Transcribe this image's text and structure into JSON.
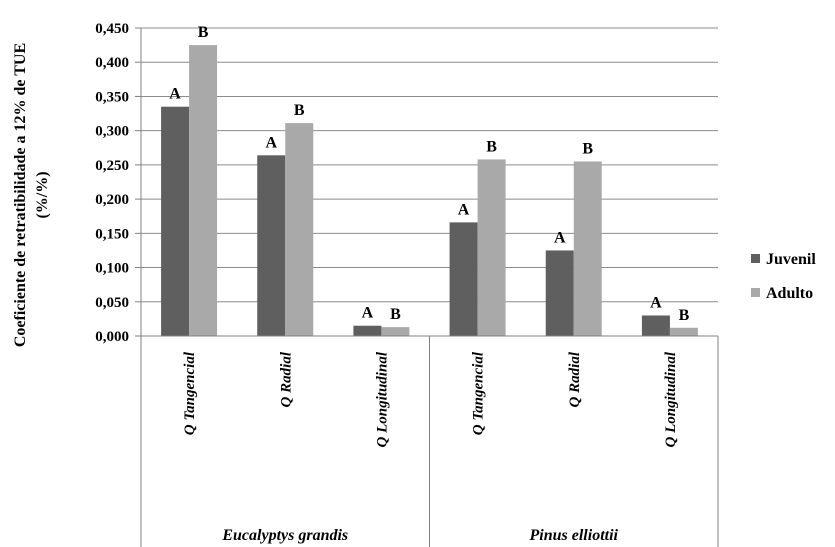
{
  "chart_data": {
    "type": "bar",
    "ylabel_line1": "Coeficiente de retratibilidade a 12% de TUE",
    "ylabel_line2": "(%/%)",
    "ylim": [
      0,
      0.45
    ],
    "yticks": [
      "0,000",
      "0,050",
      "0,100",
      "0,150",
      "0,200",
      "0,250",
      "0,300",
      "0,350",
      "0,400",
      "0,450"
    ],
    "grid": true,
    "legend_position": "right",
    "categories": [
      "Q Tangencial",
      "Q Radial",
      "Q Longitudinal",
      "Q Tangencial",
      "Q Radial",
      "Q Longitudinal"
    ],
    "groups": [
      {
        "label": "Eucalyptys grandis",
        "span": 3
      },
      {
        "label": "Pinus elliottii",
        "span": 3
      }
    ],
    "series": [
      {
        "name": "Juvenil",
        "color": "#5f5f5f",
        "values": [
          0.335,
          0.264,
          0.015,
          0.166,
          0.125,
          0.03
        ],
        "labels": [
          "A",
          "A",
          "A",
          "A",
          "A",
          "A"
        ]
      },
      {
        "name": "Adulto",
        "color": "#a9a9a9",
        "values": [
          0.425,
          0.311,
          0.013,
          0.258,
          0.255,
          0.012
        ],
        "labels": [
          "B",
          "B",
          "B",
          "B",
          "B",
          "B"
        ]
      }
    ]
  }
}
